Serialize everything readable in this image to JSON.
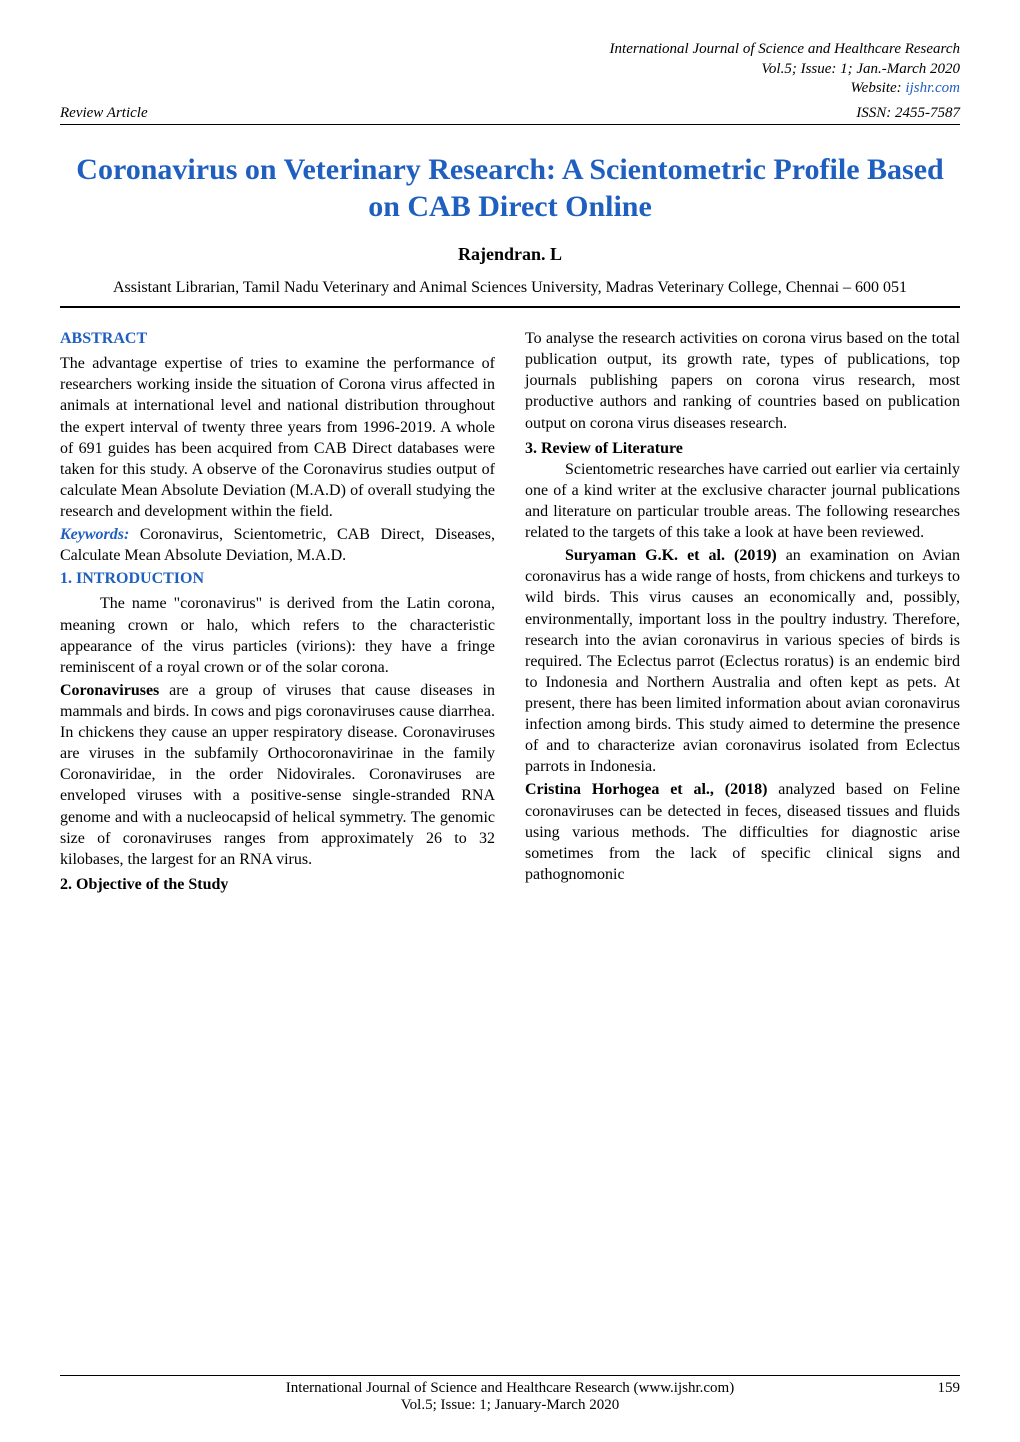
{
  "colors": {
    "accent_blue": "#1f5fbf",
    "text_black": "#000000",
    "background": "#ffffff"
  },
  "typography": {
    "body_font": "Times New Roman",
    "title_size_pt": 22,
    "body_size_pt": 12,
    "header_size_pt": 11
  },
  "header": {
    "journal": "International Journal of Science and Healthcare Research",
    "issue": "Vol.5; Issue: 1; Jan.-March 2020",
    "website_label": "Website: ",
    "website_link": "ijshr.com",
    "left": "Review Article",
    "right": "ISSN: 2455-7587"
  },
  "title": "Coronavirus on Veterinary Research: A Scientometric Profile Based on CAB Direct Online",
  "author": "Rajendran. L",
  "affiliation": "Assistant Librarian, Tamil Nadu Veterinary and Animal Sciences University, Madras Veterinary College, Chennai – 600 051",
  "left_column": {
    "abstract_heading": "ABSTRACT",
    "abstract_text": "The advantage expertise of tries to examine the performance of researchers working inside the situation of Corona virus affected in animals at international level and national distribution throughout the expert interval of twenty three years from 1996-2019. A whole of 691 guides has been acquired from CAB Direct databases were taken for this study. A observe of the Coronavirus studies output of calculate Mean Absolute Deviation (M.A.D) of overall studying the research and development within the field.",
    "keywords_label": "Keywords:",
    "keywords_text": " Coronavirus, Scientometric, CAB Direct, Diseases, Calculate Mean Absolute Deviation, M.A.D.",
    "intro_heading": "1. INTRODUCTION",
    "intro_p1": "The name \"coronavirus\" is derived from the Latin corona, meaning crown or halo, which refers to the characteristic appearance of the virus particles (virions): they have a fringe reminiscent of a royal crown or of the solar corona.",
    "intro_p2_bold": "Coronaviruses",
    "intro_p2_rest": " are a group of viruses that cause diseases in mammals and birds. In cows and pigs coronaviruses cause diarrhea. In chickens they cause an upper respiratory disease. Coronaviruses are viruses in the subfamily Orthocoronavirinae in the family Coronaviridae, in the order Nidovirales. Coronaviruses are enveloped viruses with a positive-sense single-stranded RNA genome and with a nucleocapsid of helical symmetry. The genomic size of coronaviruses ranges from approximately 26 to 32 kilobases, the largest for an RNA virus.",
    "objective_heading": "2. Objective of the Study"
  },
  "right_column": {
    "objective_text": "To analyse the research activities on corona virus based on the total publication output, its growth rate, types of publications, top journals publishing papers on corona virus research, most productive authors and ranking of countries based on publication output on corona virus diseases research.",
    "review_heading": "3. Review of Literature",
    "review_p1": "Scientometric researches have carried out earlier via certainly one of a kind writer at the exclusive character journal publications and literature on particular trouble areas. The following researches related to the targets of this take a look at have been reviewed.",
    "review_p2_bold": "Suryaman G.K. et al. (2019)",
    "review_p2_rest": " an examination on Avian coronavirus has a wide range of hosts, from chickens and turkeys to wild birds. This virus causes an economically and, possibly, environmentally, important loss in the poultry industry. Therefore, research into the avian coronavirus in various species of birds is required. The Eclectus parrot (Eclectus roratus) is an endemic bird to Indonesia and Northern Australia and often kept as pets. At present, there has been limited information about avian coronavirus infection among birds. This study aimed to determine the presence of and to characterize avian coronavirus isolated from Eclectus parrots in Indonesia.",
    "review_p3_bold": "Cristina Horhogea et al., (2018)",
    "review_p3_rest": " analyzed based on Feline coronaviruses can be detected in feces, diseased tissues and fluids using various methods. The difficulties for diagnostic arise sometimes from the lack of specific clinical signs and pathognomonic"
  },
  "footer": {
    "line1": "International Journal of Science and Healthcare Research (www.ijshr.com)",
    "line2": "Vol.5; Issue: 1; January-March 2020",
    "page": "159"
  }
}
